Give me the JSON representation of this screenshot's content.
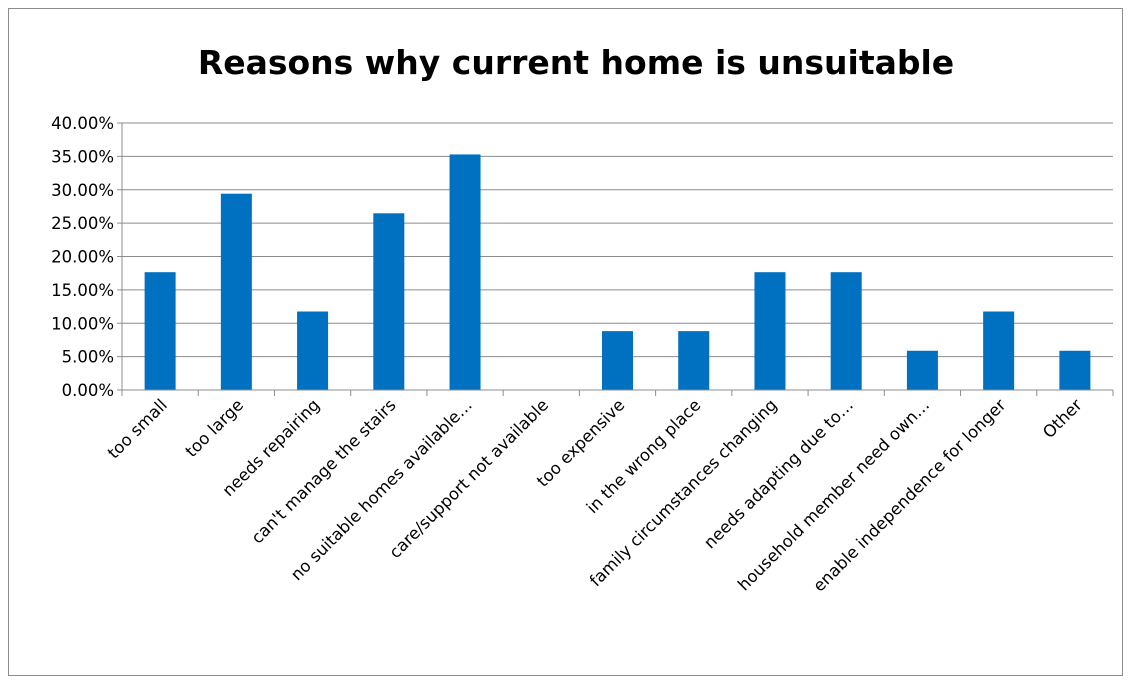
{
  "chart_data": {
    "type": "bar",
    "title": "Reasons why current home is unsuitable",
    "xlabel": "",
    "ylabel": "",
    "ylim": [
      0,
      0.4
    ],
    "y_tick_step": 0.05,
    "y_tick_labels": [
      "0.00%",
      "5.00%",
      "10.00%",
      "15.00%",
      "20.00%",
      "25.00%",
      "30.00%",
      "35.00%",
      "40.00%"
    ],
    "grid": true,
    "legend": "none",
    "bar_color": "#0070C0",
    "categories": [
      "too small",
      "too large",
      "needs repairing",
      "can't manage the stairs",
      "no suitable homes available…",
      "care/support not available",
      "too expensive",
      "in the wrong place",
      "family circumstances changing",
      "needs adapting due to…",
      "household member need own…",
      "enable independence for longer",
      "Other"
    ],
    "values": [
      0.1765,
      0.2941,
      0.1176,
      0.2647,
      0.3529,
      0.0,
      0.0882,
      0.0882,
      0.1765,
      0.1765,
      0.0588,
      0.1176,
      0.0588
    ]
  }
}
